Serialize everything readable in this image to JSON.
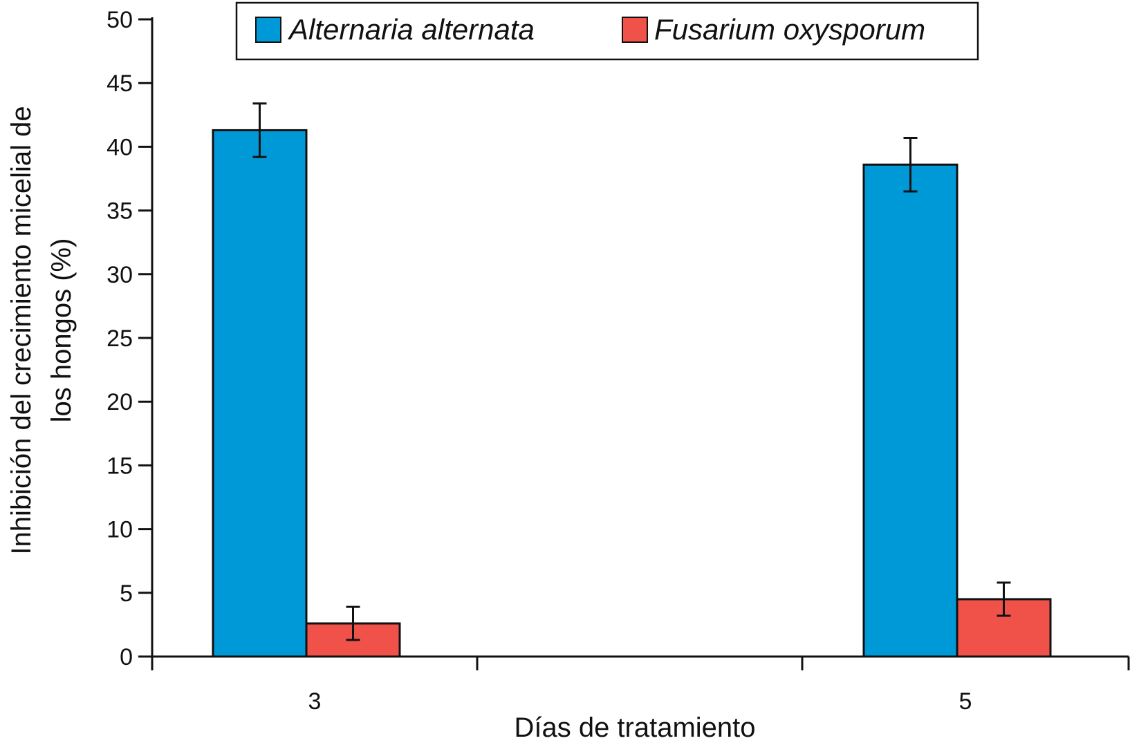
{
  "chart_data": {
    "type": "bar",
    "categories": [
      "3",
      "5"
    ],
    "series": [
      {
        "name": "Alternaria alternata",
        "color": "#0099d8",
        "values": [
          41.3,
          38.6
        ],
        "error": [
          2.1,
          2.1
        ]
      },
      {
        "name": "Fusarium oxysporum",
        "color": "#f0524a",
        "values": [
          2.6,
          4.5
        ],
        "error": [
          1.3,
          1.3
        ]
      }
    ],
    "title": "",
    "xlabel": "Días de tratamiento",
    "ylabel_lines": [
      "Inhibición del crecimiento micelial de",
      "los hongos (%)"
    ],
    "ylim": [
      0,
      50
    ],
    "yticks": [
      0,
      5,
      10,
      15,
      20,
      25,
      30,
      35,
      40,
      45,
      50
    ],
    "grid": false,
    "legend_position": "top"
  }
}
